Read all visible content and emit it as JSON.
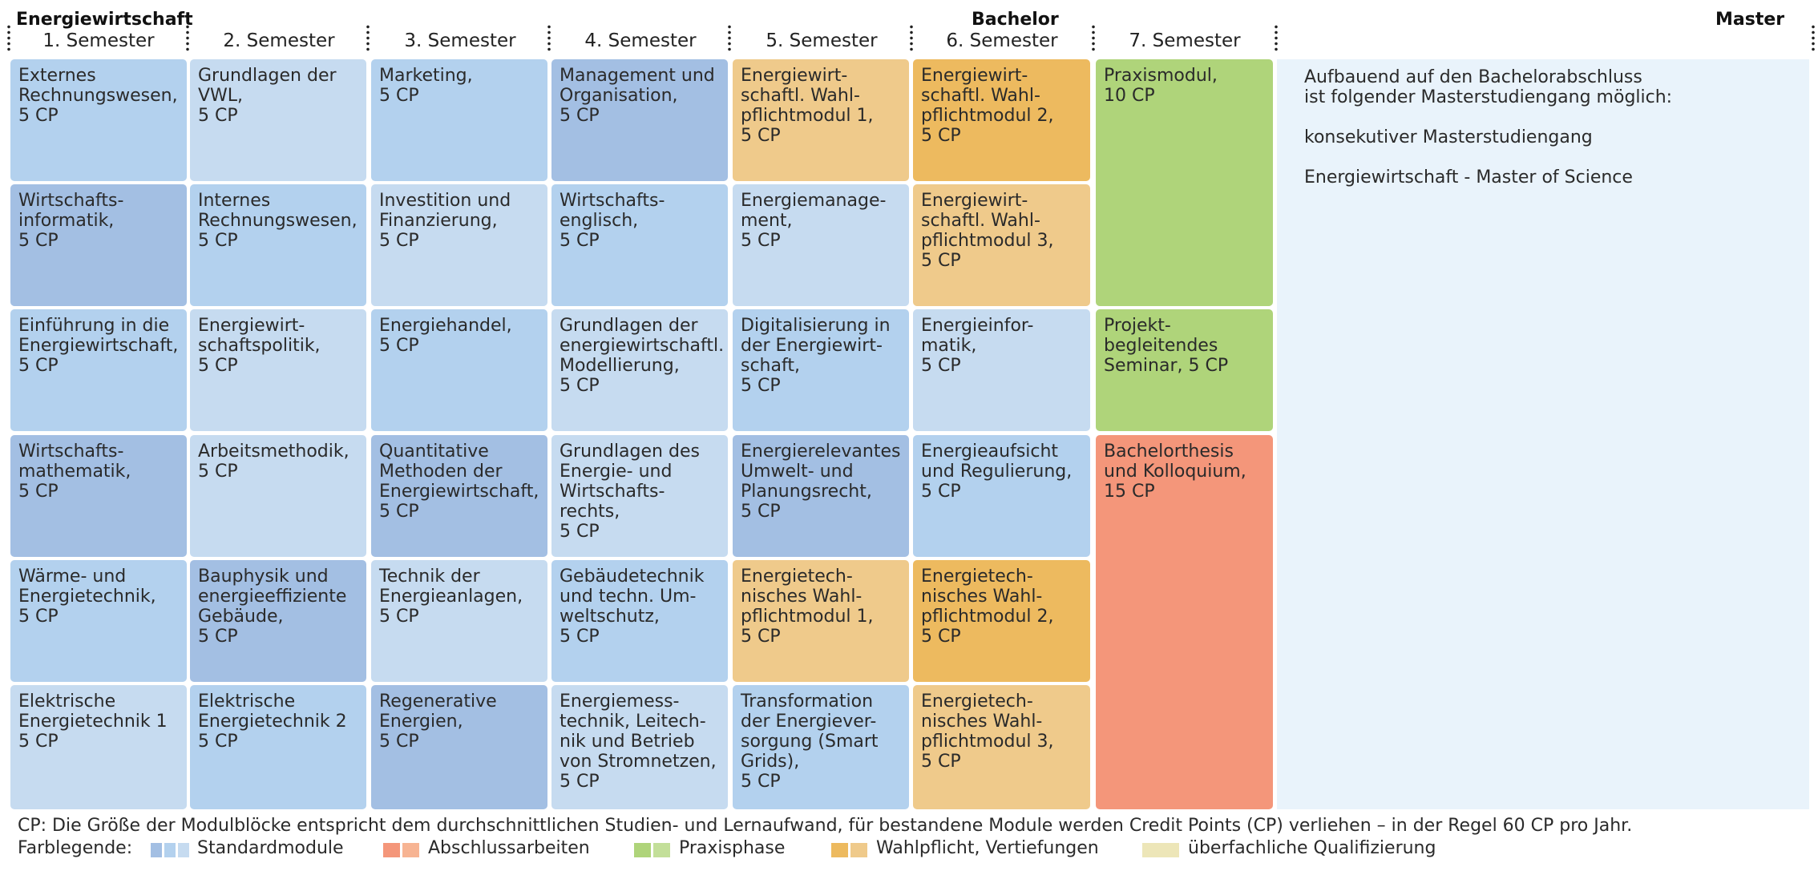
{
  "header": {
    "program_title": "Energiewirtschaft",
    "bachelor_label": "Bachelor",
    "master_label": "Master",
    "semesters": [
      "1. Semester",
      "2. Semester",
      "3. Semester",
      "4. Semester",
      "5. Semester",
      "6. Semester",
      "7. Semester"
    ]
  },
  "modules": {
    "s1": [
      {
        "text": "Externes\nRechnungswesen,\n5 CP",
        "category": "standard"
      },
      {
        "text": "Wirtschafts-\ninformatik,\n5 CP",
        "category": "standard"
      },
      {
        "text": "Einführung in die\nEnergiewirtschaft,\n5 CP",
        "category": "standard"
      },
      {
        "text": "Wirtschafts-\nmathematik,\n5 CP",
        "category": "standard"
      },
      {
        "text": "Wärme- und\nEnergietechnik,\n5 CP",
        "category": "standard"
      },
      {
        "text": "Elektrische\nEnergietechnik 1\n5 CP",
        "category": "standard"
      }
    ],
    "s2": [
      {
        "text": "Grundlagen der\nVWL,\n5 CP",
        "category": "standard"
      },
      {
        "text": "Internes\nRechnungswesen,\n5 CP",
        "category": "standard"
      },
      {
        "text": "Energiewirt-\nschaftspolitik,\n5 CP",
        "category": "standard"
      },
      {
        "text": "Arbeitsmethodik,\n5 CP",
        "category": "standard"
      },
      {
        "text": "Bauphysik und\nenergieeffiziente\nGebäude,\n5 CP",
        "category": "standard"
      },
      {
        "text": "Elektrische\nEnergietechnik 2\n5 CP",
        "category": "standard"
      }
    ],
    "s3": [
      {
        "text": "Marketing,\n5 CP",
        "category": "standard"
      },
      {
        "text": "Investition und\nFinanzierung,\n5 CP",
        "category": "standard"
      },
      {
        "text": "Energiehandel,\n5 CP",
        "category": "standard"
      },
      {
        "text": "Quantitative\nMethoden der\nEnergiewirtschaft,\n5 CP",
        "category": "standard"
      },
      {
        "text": "Technik der\nEnergieanlagen,\n5 CP",
        "category": "standard"
      },
      {
        "text": "Regenerative\nEnergien,\n5 CP",
        "category": "standard"
      }
    ],
    "s4": [
      {
        "text": "Management und\nOrganisation,\n5 CP",
        "category": "standard"
      },
      {
        "text": "Wirtschafts-\nenglisch,\n5 CP",
        "category": "standard"
      },
      {
        "text": "Grundlagen der\nenergiewirtschaftl.\nModellierung,\n5 CP",
        "category": "standard"
      },
      {
        "text": "Grundlagen des\nEnergie- und\nWirtschafts-\nrechts,\n5 CP",
        "category": "standard"
      },
      {
        "text": "Gebäudetechnik\nund techn. Um-\nweltschutz,\n5 CP",
        "category": "standard"
      },
      {
        "text": "Energiemess-\ntechnik, Leitech-\nnik und Betrieb\nvon Stromnetzen,\n5 CP",
        "category": "standard"
      }
    ],
    "s5": [
      {
        "text": "Energiewirt-\nschaftl. Wahl-\npflichtmodul 1,\n5 CP",
        "category": "wahlpflicht"
      },
      {
        "text": "Energiemanage-\nment,\n5 CP",
        "category": "standard"
      },
      {
        "text": "Digitalisierung in\nder Energiewirt-\nschaft,\n5 CP",
        "category": "standard"
      },
      {
        "text": "Energierelevantes\nUmwelt- und\nPlanungsrecht,\n5 CP",
        "category": "standard"
      },
      {
        "text": "Energietech-\nnisches Wahl-\npflichtmodul 1,\n5 CP",
        "category": "wahlpflicht"
      },
      {
        "text": "Transformation\nder Energiever-\nsorgung (Smart\nGrids),\n5 CP",
        "category": "standard"
      }
    ],
    "s6": [
      {
        "text": "Energiewirt-\nschaftl. Wahl-\npflichtmodul 2,\n5 CP",
        "category": "wahlpflicht"
      },
      {
        "text": "Energiewirt-\nschaftl. Wahl-\npflichtmodul 3,\n5 CP",
        "category": "wahlpflicht"
      },
      {
        "text": "Energieinfor-\nmatik,\n5 CP",
        "category": "standard"
      },
      {
        "text": "Energieaufsicht\nund Regulierung,\n5 CP",
        "category": "standard"
      },
      {
        "text": "Energietech-\nnisches Wahl-\npflichtmodul 2,\n5 CP",
        "category": "wahlpflicht"
      },
      {
        "text": "Energietech-\nnisches Wahl-\npflichtmodul 3,\n5 CP",
        "category": "wahlpflicht"
      }
    ],
    "s7": [
      {
        "text": "Praxismodul,\n10 CP",
        "category": "praxis"
      },
      {
        "text": "Projekt-\nbegleitendes\nSeminar, 5 CP",
        "category": "praxis"
      },
      {
        "text": "Bachelorthesis\nund Kolloquium,\n15 CP",
        "category": "abschluss"
      }
    ]
  },
  "master": {
    "line1": "Aufbauend auf den Bachelorabschluss",
    "line2": "ist folgender Masterstudiengang möglich:",
    "line3": "konsekutiver Masterstudiengang",
    "line4": "Energiewirtschaft - Master of Science"
  },
  "footer": {
    "cp_note": "CP: Die Größe der Modulblöcke entspricht dem durchschnittlichen Studien- und Lernaufwand, für bestandene Module werden Credit Points (CP) verliehen – in der Regel 60 CP pro Jahr.",
    "legend_title": "Farblegende:",
    "legend": [
      {
        "label": "Standardmodule",
        "colors": [
          "#a3bfe3",
          "#b3d1ee",
          "#c6dbf0"
        ]
      },
      {
        "label": "Abschlussarbeiten",
        "colors": [
          "#f4967a",
          "#f7b493"
        ]
      },
      {
        "label": "Praxisphase",
        "colors": [
          "#afd47a",
          "#c3df99"
        ]
      },
      {
        "label": "Wahlpflicht, Vertiefungen",
        "colors": [
          "#edba5f",
          "#efca8b"
        ]
      },
      {
        "label": "überfachliche Qualifizierung",
        "colors": [
          "#ede6b8"
        ]
      }
    ]
  }
}
